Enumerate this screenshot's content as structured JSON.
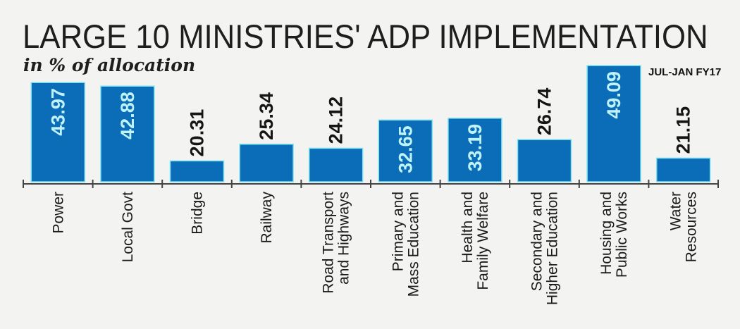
{
  "chart_data": {
    "type": "bar",
    "title": "LARGE 10 MINISTRIES' ADP IMPLEMENTATION",
    "subtitle": "in % of allocation",
    "period_label": "JUL-JAN FY17",
    "categories": [
      [
        "Power"
      ],
      [
        "Local Govt"
      ],
      [
        "Bridge"
      ],
      [
        "Railway"
      ],
      [
        "Road Transport",
        "and Highways"
      ],
      [
        "Primary and",
        "Mass Education"
      ],
      [
        "Health and",
        "Family Welfare"
      ],
      [
        "Secondary and",
        "Higher Education"
      ],
      [
        "Housing and",
        "Public Works"
      ],
      [
        "Water",
        "Resources"
      ]
    ],
    "values": [
      43.97,
      42.88,
      20.31,
      25.34,
      24.12,
      32.65,
      33.19,
      26.74,
      49.09,
      21.15
    ],
    "value_labels": [
      "43.97",
      "42.88",
      "20.31",
      "25.34",
      "24.12",
      "32.65",
      "33.19",
      "26.74",
      "49.09",
      "21.15"
    ],
    "ylim": [
      14,
      50
    ],
    "xlabel": "",
    "ylabel": "",
    "grid": false,
    "bar_color": "#0b6cb8",
    "bar_outline_color": "#7fe3f0",
    "inside_label_color": "#bff3f7",
    "outside_label_color": "#151515"
  }
}
